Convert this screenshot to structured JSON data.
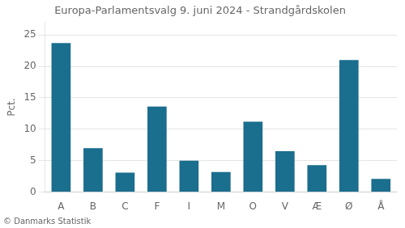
{
  "chart_data": {
    "type": "bar",
    "title": "Europa-Parlamentsvalg 9. juni 2024 - Strandgårdskolen",
    "ylabel": "Pct.",
    "footer": "© Danmarks Statistik",
    "categories": [
      "A",
      "B",
      "C",
      "F",
      "I",
      "M",
      "O",
      "V",
      "Æ",
      "Ø",
      "Å"
    ],
    "values": [
      23.7,
      7.0,
      3.1,
      13.6,
      5.0,
      3.2,
      11.2,
      6.5,
      4.3,
      21.0,
      2.1
    ],
    "color": "#1a6e8e",
    "ylim": [
      0,
      27
    ],
    "yticks": [
      0,
      5,
      10,
      15,
      20,
      25
    ],
    "grid": true
  }
}
